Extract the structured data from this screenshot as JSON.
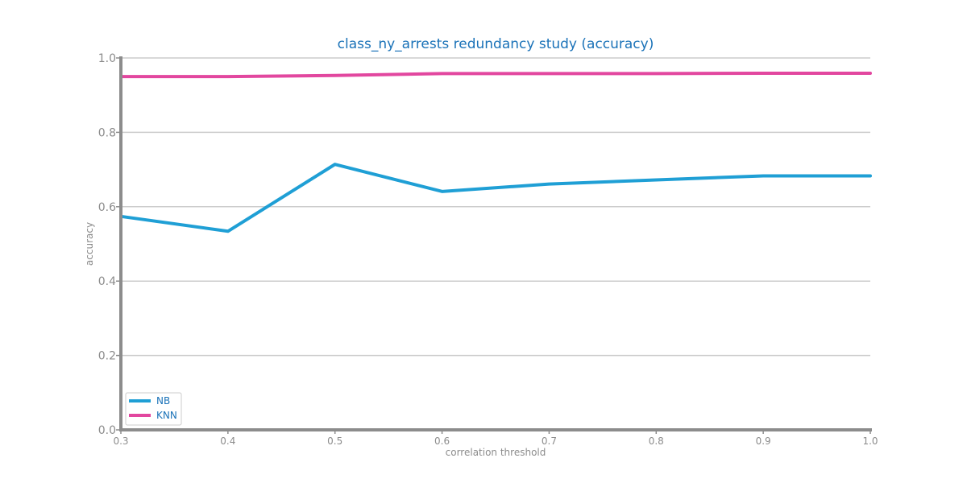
{
  "chart_data": {
    "type": "line",
    "title": "class_ny_arrests redundancy study (accuracy)",
    "xlabel": "correlation threshold",
    "ylabel": "accuracy",
    "x": [
      0.3,
      0.4,
      0.5,
      0.6,
      0.7,
      0.8,
      0.9,
      1.0
    ],
    "x_tick_labels": [
      "0.3",
      "0.4",
      "0.5",
      "0.6",
      "0.7",
      "0.8",
      "0.9",
      "1.0"
    ],
    "y_tick_values": [
      0.0,
      0.2,
      0.4,
      0.6,
      0.8,
      1.0
    ],
    "y_tick_labels": [
      "0.0",
      "0.2",
      "0.4",
      "0.6",
      "0.8",
      "1.0"
    ],
    "xlim": [
      0.3,
      1.0
    ],
    "ylim": [
      0.0,
      1.0
    ],
    "grid": "horizontal",
    "legend_position": "lower-left",
    "series": [
      {
        "name": "NB",
        "color": "#1f9fd5",
        "values": [
          0.574,
          0.534,
          0.714,
          0.641,
          0.661,
          0.672,
          0.683,
          0.683
        ]
      },
      {
        "name": "KNN",
        "color": "#e2479f",
        "values": [
          0.95,
          0.95,
          0.953,
          0.958,
          0.958,
          0.958,
          0.959,
          0.959
        ]
      }
    ],
    "colors": {
      "title": "#1a72b8",
      "axis": "#8c8c8c",
      "grid": "#cccccc",
      "tick_text": "#8c8c8c",
      "legend_text": "#1a72b8"
    }
  }
}
